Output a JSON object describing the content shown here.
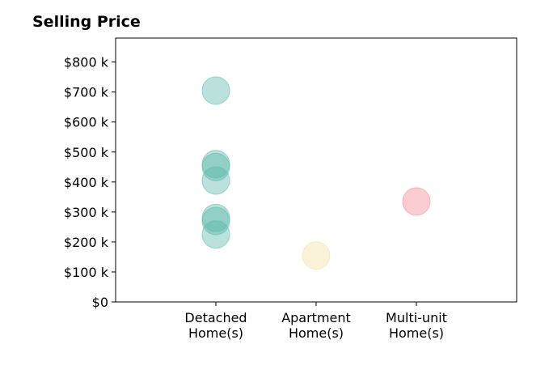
{
  "chart_data": {
    "type": "scatter",
    "title": "Selling Price",
    "xlabel": "",
    "ylabel": "",
    "categories": [
      [
        "Detached",
        "Home(s)"
      ],
      [
        "Apartment",
        "Home(s)"
      ],
      [
        "Multi-unit",
        "Home(s)"
      ]
    ],
    "ylim": [
      0,
      880
    ],
    "yticks": [
      0,
      100,
      200,
      300,
      400,
      500,
      600,
      700,
      800
    ],
    "ytick_labels": [
      "$0",
      "$100 k",
      "$200 k",
      "$300 k",
      "$400 k",
      "$500 k",
      "$600 k",
      "$700 k",
      "$800 k"
    ],
    "grid": false,
    "legend": "none",
    "series": [
      {
        "category": 0,
        "color": "#5bb8aa",
        "values": [
          705,
          460,
          450,
          405,
          280,
          270,
          225
        ]
      },
      {
        "category": 1,
        "color": "#f5dfa8",
        "values": [
          155
        ]
      },
      {
        "category": 2,
        "color": "#f4898f",
        "values": [
          335
        ]
      }
    ]
  }
}
